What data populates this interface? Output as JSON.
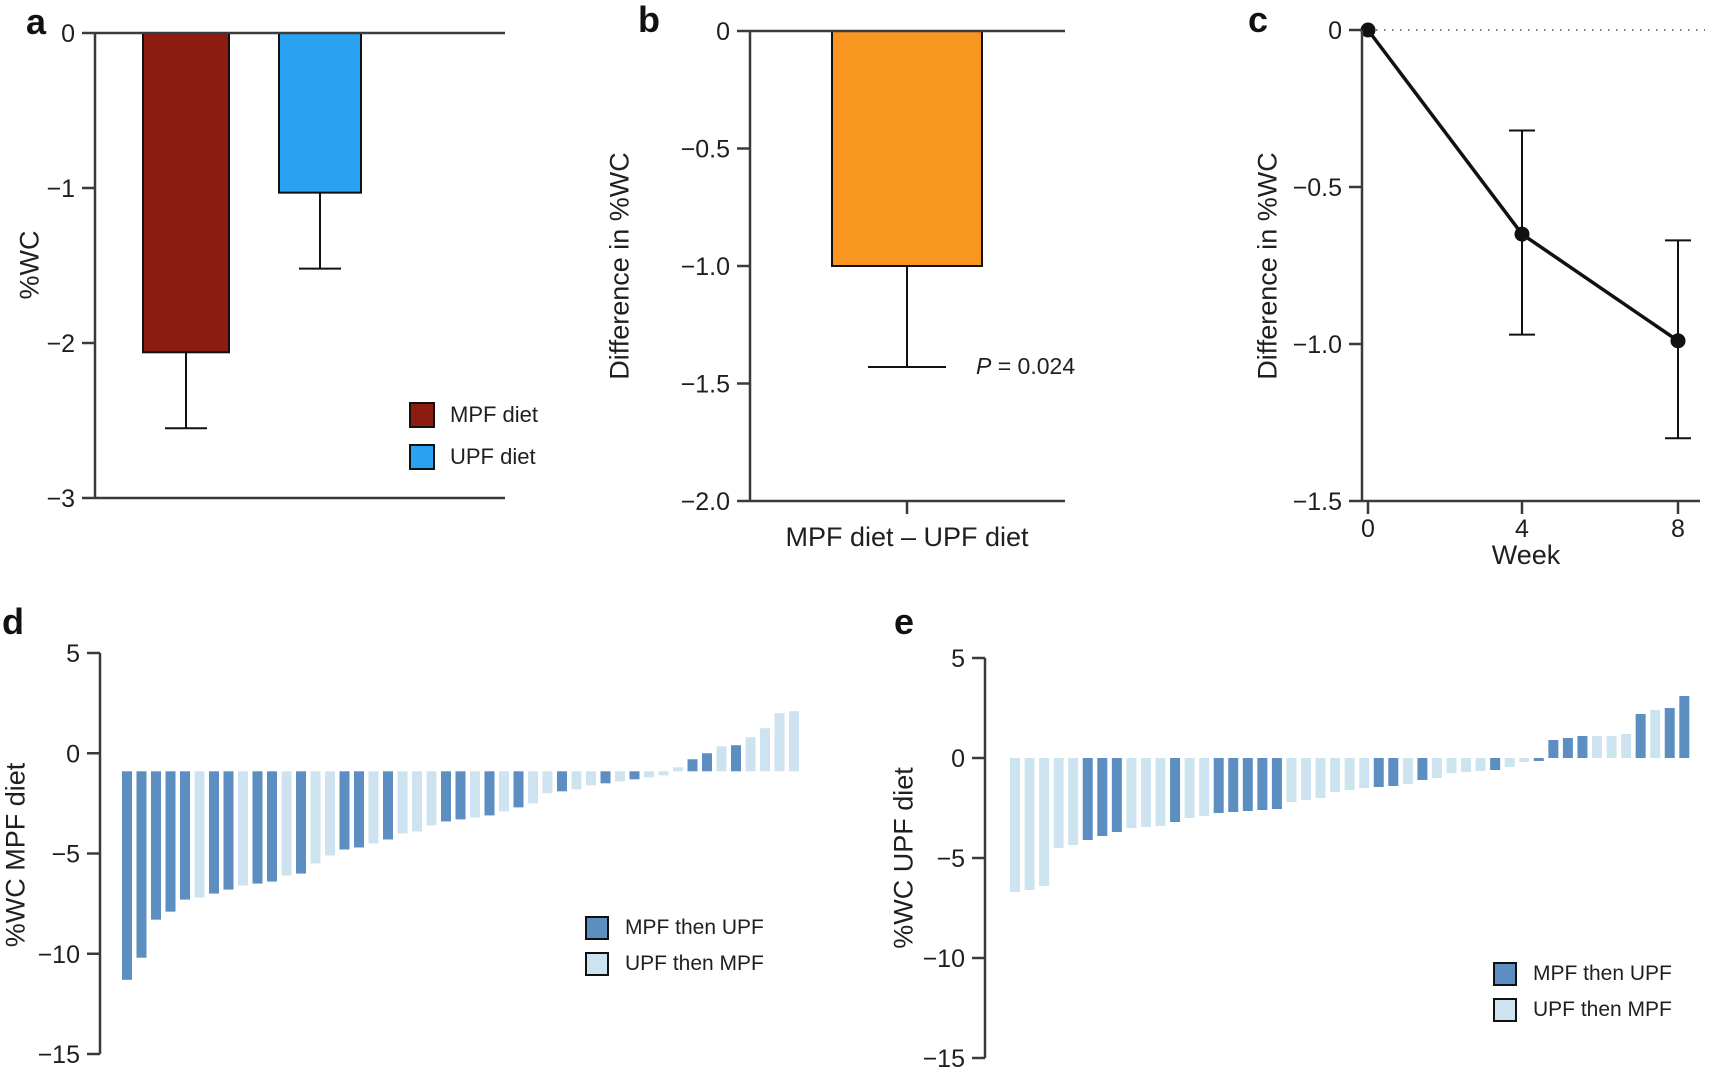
{
  "colors": {
    "mpf_red": "#8C1B10",
    "upf_blue": "#2BA1F1",
    "diff_orange": "#F89620",
    "seq_dark_blue": "#5C8EC2",
    "seq_light_blue": "#CDE4F0",
    "text": "#1F1F1F",
    "axis": "#3A3A3A",
    "marker_black": "#111111"
  },
  "chart_data": [
    {
      "panel": "a",
      "type": "bar",
      "ylabel": "%WC",
      "ylim": [
        -3,
        0
      ],
      "grid": false,
      "yticks": [
        {
          "v": 0,
          "label": "0"
        },
        {
          "v": -1,
          "label": "−1"
        },
        {
          "v": -2,
          "label": "−2"
        },
        {
          "v": -3,
          "label": "−3"
        }
      ],
      "bars": [
        {
          "name": "MPF diet",
          "value": -2.06,
          "err_lo": -2.55,
          "color_key": "mpf_red"
        },
        {
          "name": "UPF diet",
          "value": -1.03,
          "err_lo": -1.52,
          "color_key": "upf_blue"
        }
      ],
      "legend_position": "lower right",
      "legend": [
        {
          "label": "MPF diet",
          "color_key": "mpf_red"
        },
        {
          "label": "UPF diet",
          "color_key": "upf_blue"
        }
      ]
    },
    {
      "panel": "b",
      "type": "bar",
      "ylabel": "Difference in %WC",
      "xlabel": "MPF diet – UPF diet",
      "ylim": [
        -2,
        0
      ],
      "grid": false,
      "yticks": [
        {
          "v": 0,
          "label": "0"
        },
        {
          "v": -0.5,
          "label": "−0.5"
        },
        {
          "v": -1,
          "label": "−1.0"
        },
        {
          "v": -1.5,
          "label": "−1.5"
        },
        {
          "v": -2,
          "label": "−2.0"
        }
      ],
      "bars": [
        {
          "name": "MPF diet – UPF diet",
          "value": -1.0,
          "err_lo": -1.43,
          "color_key": "diff_orange"
        }
      ],
      "annotation": {
        "p_italic": "P",
        "p_rest": " = 0.024"
      }
    },
    {
      "panel": "c",
      "type": "line",
      "ylabel": "Difference in %WC",
      "xlabel": "Week",
      "ylim": [
        -1.5,
        0
      ],
      "xlim": [
        0,
        8
      ],
      "grid": false,
      "zero_reference_line": true,
      "yticks": [
        {
          "v": 0,
          "label": "0"
        },
        {
          "v": -0.5,
          "label": "−0.5"
        },
        {
          "v": -1,
          "label": "−1.0"
        },
        {
          "v": -1.5,
          "label": "−1.5"
        }
      ],
      "xticks": [
        {
          "v": 0,
          "label": "0"
        },
        {
          "v": 4,
          "label": "4"
        },
        {
          "v": 8,
          "label": "8"
        }
      ],
      "points": [
        {
          "x": 0,
          "y": 0.0,
          "ci_hi": null,
          "ci_lo": null
        },
        {
          "x": 4,
          "y": -0.65,
          "ci_hi": -0.32,
          "ci_lo": -0.97
        },
        {
          "x": 8,
          "y": -0.99,
          "ci_hi": -0.67,
          "ci_lo": -1.3
        }
      ]
    },
    {
      "panel": "d",
      "type": "bar",
      "subtype": "individual-waterfall",
      "ylabel": "%WC MPF diet",
      "ylim": [
        -15,
        5
      ],
      "grid": false,
      "bar_baseline": -0.9,
      "yticks": [
        {
          "v": 5,
          "label": "5"
        },
        {
          "v": 0,
          "label": "0"
        },
        {
          "v": -5,
          "label": "−5"
        },
        {
          "v": -10,
          "label": "−10"
        },
        {
          "v": -15,
          "label": "−15"
        }
      ],
      "legend_position": "lower right",
      "legend": [
        {
          "label": "MPF then UPF",
          "color_key": "seq_dark_blue"
        },
        {
          "label": "UPF then MPF",
          "color_key": "seq_light_blue"
        }
      ],
      "values": [
        -11.3,
        -10.2,
        -8.3,
        -7.9,
        -7.3,
        -7.2,
        -7.0,
        -6.8,
        -6.6,
        -6.5,
        -6.4,
        -6.1,
        -6.0,
        -5.5,
        -5.1,
        -4.8,
        -4.7,
        -4.5,
        -4.3,
        -4.0,
        -3.9,
        -3.6,
        -3.4,
        -3.3,
        -3.2,
        -3.1,
        -2.9,
        -2.7,
        -2.5,
        -2.0,
        -1.9,
        -1.8,
        -1.6,
        -1.5,
        -1.4,
        -1.3,
        -1.2,
        -1.1,
        -0.7,
        -0.3,
        0.0,
        0.35,
        0.4,
        0.8,
        1.25,
        2.0,
        2.1
      ],
      "groups": [
        0,
        0,
        0,
        0,
        0,
        1,
        0,
        0,
        1,
        0,
        0,
        1,
        0,
        1,
        1,
        0,
        0,
        1,
        0,
        1,
        1,
        1,
        0,
        0,
        1,
        0,
        1,
        0,
        1,
        1,
        0,
        1,
        1,
        0,
        1,
        0,
        1,
        1,
        1,
        0,
        0,
        1,
        0,
        1,
        1,
        1,
        1
      ]
    },
    {
      "panel": "e",
      "type": "bar",
      "subtype": "individual-waterfall",
      "ylabel": "%WC UPF diet",
      "ylim": [
        -15,
        5
      ],
      "grid": false,
      "bar_baseline": 0,
      "yticks": [
        {
          "v": 5,
          "label": "5"
        },
        {
          "v": 0,
          "label": "0"
        },
        {
          "v": -5,
          "label": "−5"
        },
        {
          "v": -10,
          "label": "−10"
        },
        {
          "v": -15,
          "label": "−15"
        }
      ],
      "legend_position": "lower right",
      "legend": [
        {
          "label": "MPF then UPF",
          "color_key": "seq_dark_blue"
        },
        {
          "label": "UPF then MPF",
          "color_key": "seq_light_blue"
        }
      ],
      "values": [
        -6.7,
        -6.6,
        -6.4,
        -4.5,
        -4.35,
        -4.1,
        -3.9,
        -3.7,
        -3.5,
        -3.45,
        -3.4,
        -3.2,
        -3.0,
        -2.9,
        -2.75,
        -2.7,
        -2.65,
        -2.6,
        -2.55,
        -2.2,
        -2.1,
        -2.0,
        -1.7,
        -1.6,
        -1.5,
        -1.45,
        -1.4,
        -1.3,
        -1.1,
        -1.0,
        -0.75,
        -0.7,
        -0.65,
        -0.6,
        -0.45,
        -0.2,
        -0.15,
        0.9,
        1.0,
        1.1,
        1.1,
        1.1,
        1.2,
        2.2,
        2.4,
        2.5,
        3.1
      ],
      "groups": [
        1,
        1,
        1,
        1,
        1,
        0,
        0,
        0,
        1,
        1,
        1,
        0,
        1,
        1,
        0,
        0,
        0,
        0,
        0,
        1,
        1,
        1,
        1,
        1,
        1,
        0,
        0,
        1,
        0,
        1,
        1,
        1,
        1,
        0,
        1,
        1,
        0,
        0,
        0,
        0,
        1,
        1,
        1,
        0,
        1,
        0,
        0
      ]
    }
  ]
}
